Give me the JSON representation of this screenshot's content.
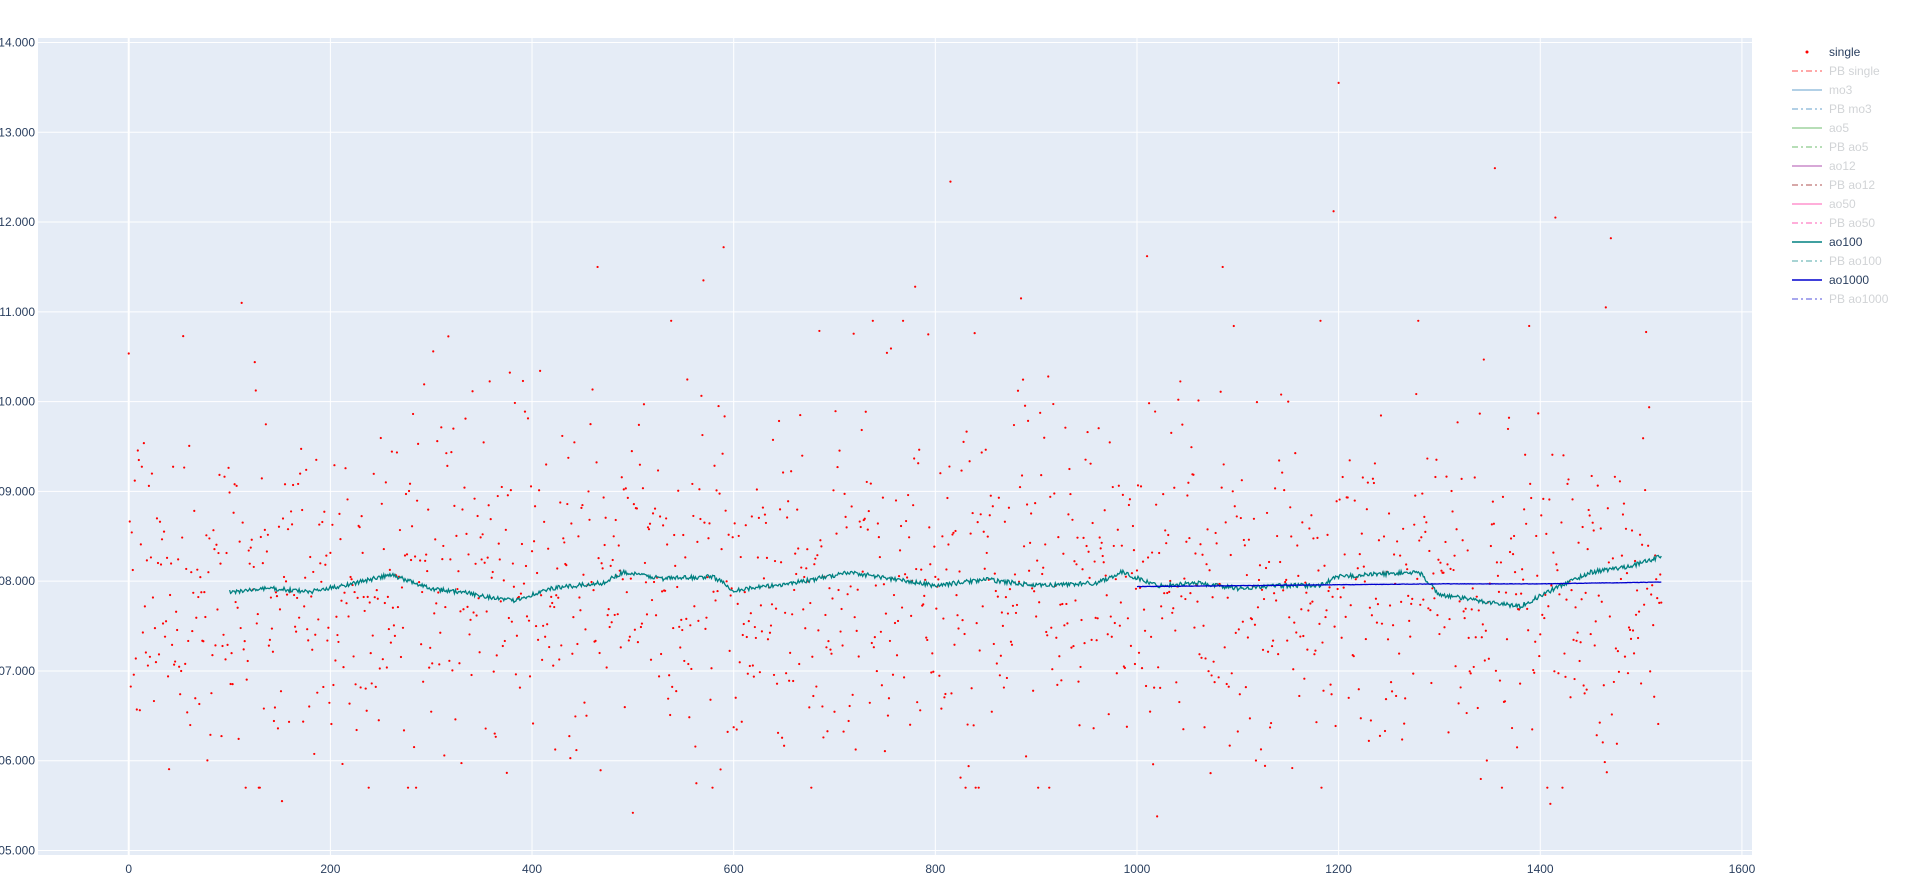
{
  "chart_data": {
    "type": "scatter",
    "title": "",
    "xlabel": "",
    "ylabel": "",
    "xlim": [
      -90,
      1610
    ],
    "ylim": [
      4.95,
      14.05
    ],
    "x_ticks": [
      0,
      200,
      400,
      600,
      800,
      1000,
      1200,
      1400,
      1600
    ],
    "x_tick_labels": [
      "0",
      "200",
      "400",
      "600",
      "800",
      "1000",
      "1200",
      "1400",
      "1600"
    ],
    "y_ticks": [
      5,
      6,
      7,
      8,
      9,
      10,
      11,
      12,
      13,
      14
    ],
    "y_tick_labels": [
      "05.000",
      "06.000",
      "07.000",
      "08.000",
      "09.000",
      "10.000",
      "11.000",
      "12.000",
      "13.000",
      "14.000"
    ],
    "grid": true,
    "legend_position": "right",
    "colors": {
      "plot_bg": "#e5ecf6",
      "grid": "#ffffff",
      "single": "#ff0000",
      "ao100": "#008080",
      "ao1000": "#0000cd",
      "legend_hidden_text": "#9aa0a6",
      "legend_active_text": "#2a3f5f"
    },
    "legend": [
      {
        "name": "single",
        "symbol": "dot",
        "color": "#ff0000",
        "visible": true
      },
      {
        "name": "PB single",
        "symbol": "dashdot",
        "color": "#ff0000",
        "visible": false
      },
      {
        "name": "mo3",
        "symbol": "line",
        "color": "#1f77b4",
        "visible": false
      },
      {
        "name": "PB mo3",
        "symbol": "dashdot",
        "color": "#1f77b4",
        "visible": false
      },
      {
        "name": "ao5",
        "symbol": "line",
        "color": "#2ca02c",
        "visible": false
      },
      {
        "name": "PB ao5",
        "symbol": "dashdot",
        "color": "#2ca02c",
        "visible": false
      },
      {
        "name": "ao12",
        "symbol": "line",
        "color": "#8b008b",
        "visible": false
      },
      {
        "name": "PB ao12",
        "symbol": "dashdot",
        "color": "#8b0000",
        "visible": false
      },
      {
        "name": "ao50",
        "symbol": "line",
        "color": "#ff1493",
        "visible": false
      },
      {
        "name": "PB ao50",
        "symbol": "dashdot",
        "color": "#ff1493",
        "visible": false
      },
      {
        "name": "ao100",
        "symbol": "line",
        "color": "#008080",
        "visible": true
      },
      {
        "name": "PB ao100",
        "symbol": "dashdot",
        "color": "#008080",
        "visible": false
      },
      {
        "name": "ao1000",
        "symbol": "line",
        "color": "#0000cd",
        "visible": true
      },
      {
        "name": "PB ao1000",
        "symbol": "dashdot",
        "color": "#0000cd",
        "visible": false
      }
    ],
    "series": [
      {
        "name": "single",
        "mode": "markers",
        "x_range": [
          0,
          1520
        ],
        "count": 1521,
        "distribution_note_values": {
          "median": 7.9,
          "min": 5.4,
          "max": 13.55
        },
        "notable_points": [
          {
            "x": 1200,
            "y": 13.55
          },
          {
            "x": 1355,
            "y": 12.6
          },
          {
            "x": 815,
            "y": 12.45
          },
          {
            "x": 1195,
            "y": 12.12
          },
          {
            "x": 1415,
            "y": 12.05
          },
          {
            "x": 1470,
            "y": 11.82
          },
          {
            "x": 590,
            "y": 11.72
          },
          {
            "x": 1010,
            "y": 11.62
          },
          {
            "x": 465,
            "y": 11.5
          },
          {
            "x": 1085,
            "y": 11.5
          },
          {
            "x": 570,
            "y": 11.35
          },
          {
            "x": 780,
            "y": 11.28
          },
          {
            "x": 885,
            "y": 11.15
          },
          {
            "x": 112,
            "y": 11.1
          },
          {
            "x": 1465,
            "y": 11.05
          },
          {
            "x": 500,
            "y": 5.42
          },
          {
            "x": 1020,
            "y": 5.38
          },
          {
            "x": 1410,
            "y": 5.52
          },
          {
            "x": 152,
            "y": 5.55
          }
        ]
      },
      {
        "name": "ao100",
        "mode": "lines",
        "points": [
          [
            100,
            7.88
          ],
          [
            140,
            7.92
          ],
          [
            180,
            7.88
          ],
          [
            220,
            7.97
          ],
          [
            260,
            8.07
          ],
          [
            300,
            7.92
          ],
          [
            340,
            7.86
          ],
          [
            380,
            7.78
          ],
          [
            420,
            7.92
          ],
          [
            470,
            7.98
          ],
          [
            490,
            8.1
          ],
          [
            530,
            8.03
          ],
          [
            580,
            8.05
          ],
          [
            600,
            7.9
          ],
          [
            640,
            7.95
          ],
          [
            680,
            8.02
          ],
          [
            715,
            8.1
          ],
          [
            760,
            8.02
          ],
          [
            800,
            7.95
          ],
          [
            850,
            8.02
          ],
          [
            900,
            7.95
          ],
          [
            960,
            7.98
          ],
          [
            985,
            8.1
          ],
          [
            1020,
            7.95
          ],
          [
            1060,
            7.98
          ],
          [
            1100,
            7.92
          ],
          [
            1140,
            7.95
          ],
          [
            1180,
            7.95
          ],
          [
            1200,
            8.05
          ],
          [
            1240,
            8.08
          ],
          [
            1280,
            8.1
          ],
          [
            1300,
            7.85
          ],
          [
            1340,
            7.78
          ],
          [
            1380,
            7.72
          ],
          [
            1420,
            7.95
          ],
          [
            1450,
            8.1
          ],
          [
            1480,
            8.15
          ],
          [
            1500,
            8.2
          ],
          [
            1520,
            8.28
          ]
        ]
      },
      {
        "name": "ao1000",
        "mode": "lines",
        "points": [
          [
            1000,
            7.94
          ],
          [
            1100,
            7.95
          ],
          [
            1200,
            7.96
          ],
          [
            1300,
            7.97
          ],
          [
            1400,
            7.97
          ],
          [
            1520,
            7.99
          ]
        ]
      }
    ]
  }
}
